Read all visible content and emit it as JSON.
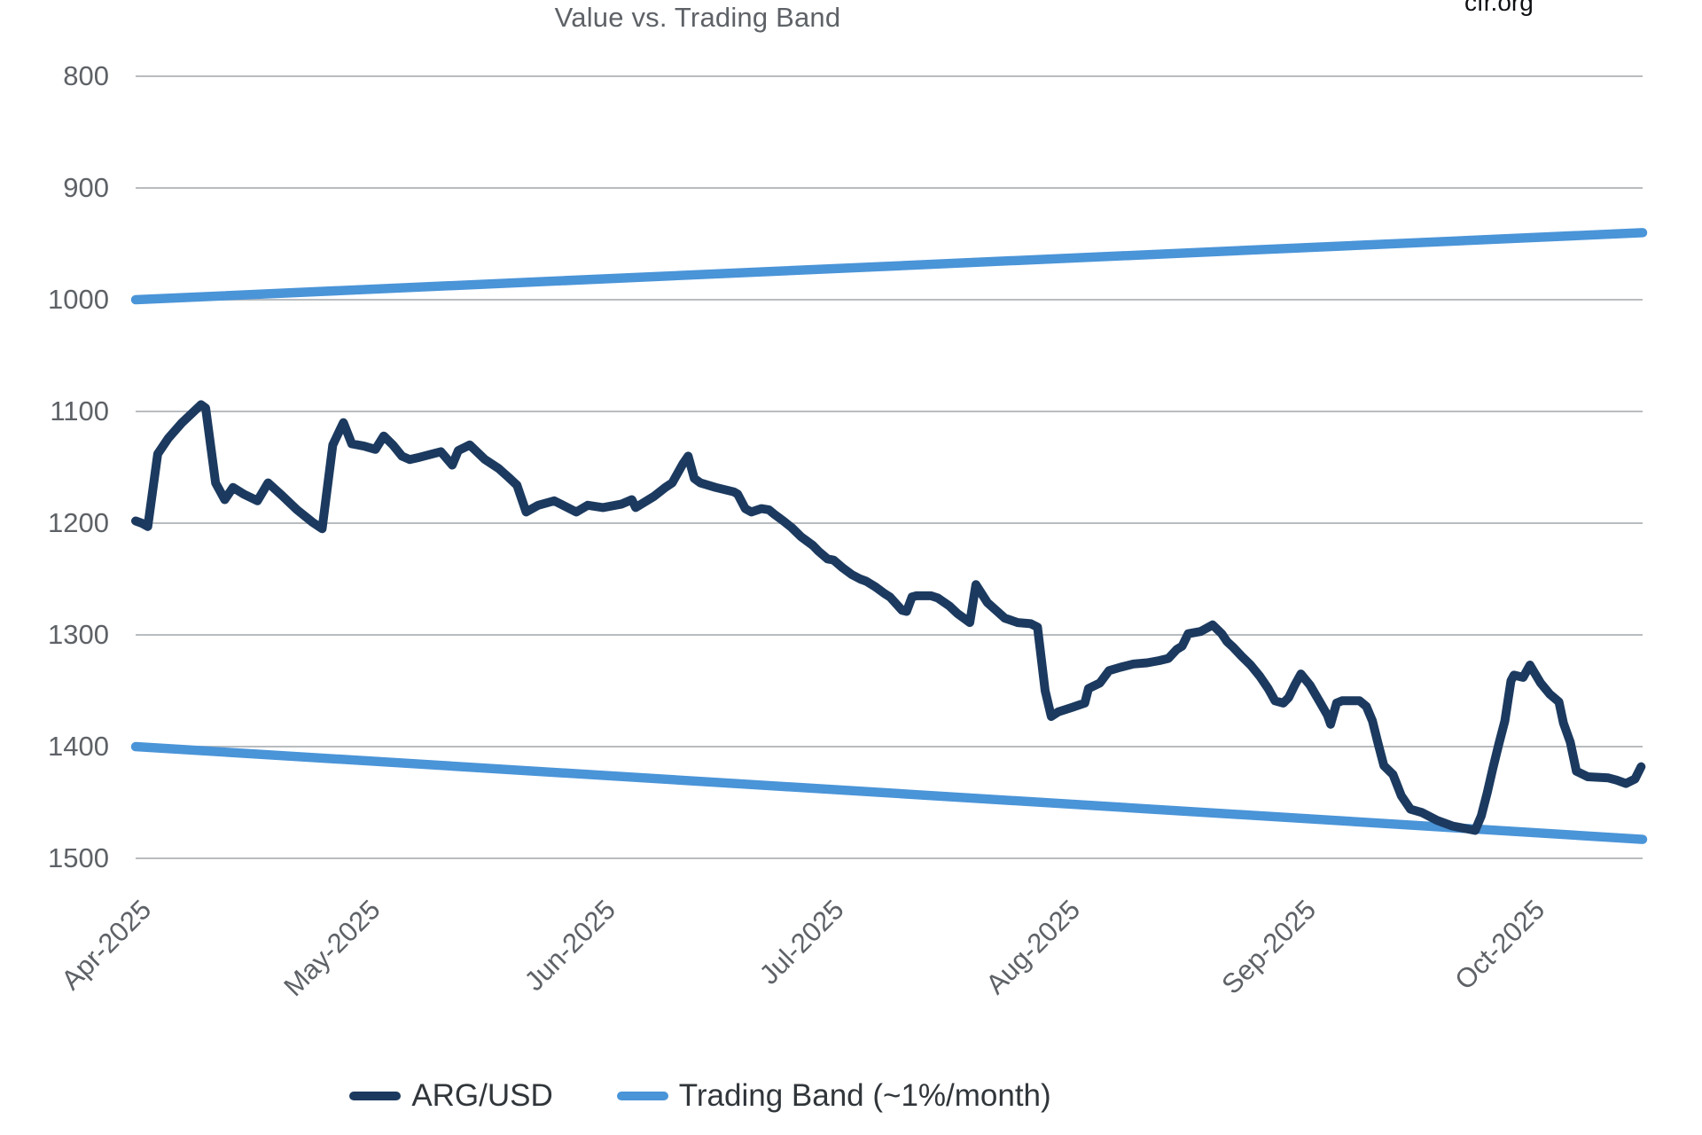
{
  "page": {
    "watermark": "cfr.org"
  },
  "chart_data": {
    "type": "line",
    "title": "Value vs. Trading Band",
    "grid": true,
    "legend_position": "bottom",
    "x_axis": {
      "tick_labels": [
        "Apr-2025",
        "May-2025",
        "Jun-2025",
        "Jul-2025",
        "Aug-2025",
        "Sep-2025",
        "Oct-2025"
      ],
      "tick_days": [
        0,
        30,
        61,
        91,
        122,
        153,
        183
      ],
      "span_days": 198
    },
    "y_axis": {
      "ticks": [
        800,
        900,
        1000,
        1100,
        1200,
        1300,
        1400,
        1500
      ],
      "min": 800,
      "max": 1500,
      "inverted": true
    },
    "series": [
      {
        "name": "ARG/USD",
        "color": "#1c3a5f",
        "points": [
          [
            0,
            1198
          ],
          [
            0.8,
            1200
          ],
          [
            1.6,
            1203
          ],
          [
            2.9,
            1138
          ],
          [
            4.3,
            1124
          ],
          [
            6.1,
            1110
          ],
          [
            8.6,
            1094
          ],
          [
            9.2,
            1097
          ],
          [
            10.5,
            1164
          ],
          [
            11.7,
            1179
          ],
          [
            12.8,
            1168
          ],
          [
            14.2,
            1174
          ],
          [
            16,
            1180
          ],
          [
            17.4,
            1164
          ],
          [
            19.2,
            1175
          ],
          [
            21.2,
            1188
          ],
          [
            23.2,
            1199
          ],
          [
            24.5,
            1205
          ],
          [
            25.9,
            1130
          ],
          [
            27.3,
            1110
          ],
          [
            28.4,
            1129
          ],
          [
            30,
            1131
          ],
          [
            31.5,
            1134
          ],
          [
            32.6,
            1122
          ],
          [
            33.8,
            1130
          ],
          [
            35,
            1140
          ],
          [
            36,
            1143
          ],
          [
            37.3,
            1141
          ],
          [
            40.1,
            1136
          ],
          [
            41.6,
            1148
          ],
          [
            42.4,
            1135
          ],
          [
            43.9,
            1130
          ],
          [
            45.9,
            1143
          ],
          [
            47.7,
            1151
          ],
          [
            49,
            1159
          ],
          [
            50.1,
            1166
          ],
          [
            51.3,
            1190
          ],
          [
            52.9,
            1184
          ],
          [
            55,
            1180
          ],
          [
            57.9,
            1190
          ],
          [
            59.4,
            1184
          ],
          [
            61.4,
            1186
          ],
          [
            63.8,
            1183
          ],
          [
            65.2,
            1179
          ],
          [
            65.7,
            1186
          ],
          [
            68.1,
            1176
          ],
          [
            69.6,
            1168
          ],
          [
            70.5,
            1164
          ],
          [
            71.9,
            1147
          ],
          [
            72.6,
            1140
          ],
          [
            73.4,
            1160
          ],
          [
            74.2,
            1164
          ],
          [
            76.2,
            1168
          ],
          [
            78.6,
            1172
          ],
          [
            79.1,
            1174
          ],
          [
            80.1,
            1187
          ],
          [
            80.9,
            1190
          ],
          [
            82.2,
            1187
          ],
          [
            83.2,
            1188
          ],
          [
            83.9,
            1192
          ],
          [
            85.1,
            1198
          ],
          [
            86.2,
            1204
          ],
          [
            87.4,
            1212
          ],
          [
            88.2,
            1216
          ],
          [
            89,
            1220
          ],
          [
            89.7,
            1225
          ],
          [
            90.9,
            1232
          ],
          [
            91.7,
            1233
          ],
          [
            92.9,
            1240
          ],
          [
            94.1,
            1246
          ],
          [
            95.2,
            1250
          ],
          [
            96,
            1252
          ],
          [
            97.2,
            1257
          ],
          [
            98.4,
            1263
          ],
          [
            99.1,
            1266
          ],
          [
            100.7,
            1278
          ],
          [
            101.3,
            1279
          ],
          [
            102,
            1266
          ],
          [
            102.6,
            1265
          ],
          [
            104.5,
            1265
          ],
          [
            105.4,
            1267
          ],
          [
            106.9,
            1274
          ],
          [
            108,
            1281
          ],
          [
            109.2,
            1287
          ],
          [
            109.6,
            1289
          ],
          [
            110.4,
            1255
          ],
          [
            111.9,
            1271
          ],
          [
            114.2,
            1285
          ],
          [
            115.9,
            1289
          ],
          [
            117.6,
            1290
          ],
          [
            118.5,
            1293
          ],
          [
            119.5,
            1350
          ],
          [
            120.3,
            1373
          ],
          [
            121.2,
            1369
          ],
          [
            123,
            1365
          ],
          [
            124.7,
            1361
          ],
          [
            125.2,
            1348
          ],
          [
            126.7,
            1343
          ],
          [
            127.9,
            1332
          ],
          [
            129.4,
            1329
          ],
          [
            131.1,
            1326
          ],
          [
            132.9,
            1325
          ],
          [
            134.5,
            1323
          ],
          [
            135.7,
            1321
          ],
          [
            136.8,
            1313
          ],
          [
            137.5,
            1310
          ],
          [
            138.3,
            1299
          ],
          [
            139.9,
            1297
          ],
          [
            141.5,
            1291
          ],
          [
            142.7,
            1299
          ],
          [
            143.4,
            1306
          ],
          [
            144.2,
            1311
          ],
          [
            145.3,
            1319
          ],
          [
            146.5,
            1327
          ],
          [
            147.7,
            1337
          ],
          [
            148.8,
            1348
          ],
          [
            149.7,
            1359
          ],
          [
            150.8,
            1361
          ],
          [
            151.5,
            1356
          ],
          [
            152.3,
            1345
          ],
          [
            153.1,
            1335
          ],
          [
            154.3,
            1345
          ],
          [
            155.5,
            1359
          ],
          [
            156.6,
            1372
          ],
          [
            157,
            1380
          ],
          [
            157.8,
            1361
          ],
          [
            158.5,
            1359
          ],
          [
            160.8,
            1359
          ],
          [
            161.7,
            1364
          ],
          [
            162.5,
            1377
          ],
          [
            163.2,
            1396
          ],
          [
            164,
            1417
          ],
          [
            165.2,
            1425
          ],
          [
            166.3,
            1444
          ],
          [
            167.5,
            1456
          ],
          [
            169,
            1459
          ],
          [
            171,
            1466
          ],
          [
            173,
            1471
          ],
          [
            174.5,
            1473
          ],
          [
            176,
            1475
          ],
          [
            176.8,
            1462
          ],
          [
            177.6,
            1441
          ],
          [
            178.3,
            1420
          ],
          [
            179.1,
            1398
          ],
          [
            179.9,
            1377
          ],
          [
            180.7,
            1341
          ],
          [
            181.1,
            1336
          ],
          [
            182.3,
            1338
          ],
          [
            183.2,
            1327
          ],
          [
            184.6,
            1343
          ],
          [
            185.8,
            1353
          ],
          [
            187,
            1360
          ],
          [
            187.6,
            1379
          ],
          [
            188.5,
            1396
          ],
          [
            189.3,
            1422
          ],
          [
            190.8,
            1427
          ],
          [
            193.5,
            1428
          ],
          [
            194.6,
            1430
          ],
          [
            195.8,
            1433
          ],
          [
            197,
            1429
          ],
          [
            197.8,
            1418
          ]
        ]
      },
      {
        "name": "Trading Band (~1%/month)",
        "color": "#4a94d8",
        "lines": [
          {
            "name": "upper-band",
            "points": [
              [
                0,
                1000
              ],
              [
                198,
                940
              ]
            ]
          },
          {
            "name": "lower-band",
            "points": [
              [
                0,
                1400
              ],
              [
                198,
                1483
              ]
            ]
          }
        ]
      }
    ],
    "colors": {
      "gridline": "#b9bcbf",
      "axis_text": "#5e6267",
      "legend_text": "#31363b"
    }
  },
  "legend": {
    "items": [
      {
        "label": "ARG/USD",
        "color": "#1c3a5f"
      },
      {
        "label": "Trading Band (~1%/month)",
        "color": "#4a94d8"
      }
    ]
  }
}
